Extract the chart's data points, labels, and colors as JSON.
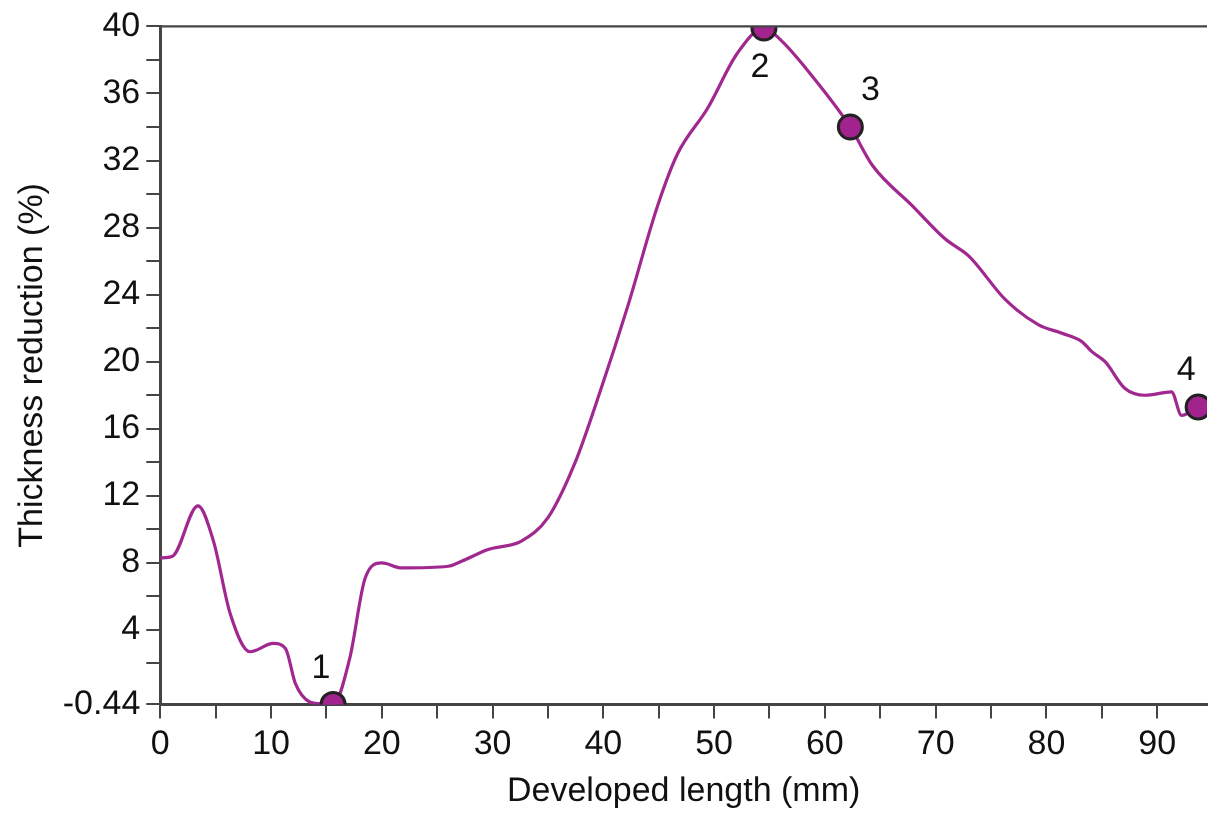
{
  "chart_data": {
    "type": "line",
    "xlabel": "Developed length (mm)",
    "ylabel": "Thickness reduction (%)",
    "xlim": [
      0,
      94.5
    ],
    "ylim": [
      -0.44,
      40
    ],
    "xticks": [
      0,
      {
        "value": 5,
        "label": null
      },
      10,
      {
        "value": 15,
        "label": null
      },
      20,
      {
        "value": 25,
        "label": null
      },
      30,
      {
        "value": 35,
        "label": null
      },
      40,
      {
        "value": 45,
        "label": null
      },
      50,
      {
        "value": 55,
        "label": null
      },
      60,
      {
        "value": 65,
        "label": null
      },
      70,
      {
        "value": 75,
        "label": null
      },
      80,
      {
        "value": 85,
        "label": null
      },
      90
    ],
    "yticks": [
      -0.44,
      {
        "value": 2,
        "label": null
      },
      4,
      {
        "value": 6,
        "label": null
      },
      8,
      {
        "value": 10,
        "label": null
      },
      12,
      {
        "value": 14,
        "label": null
      },
      16,
      {
        "value": 18,
        "label": null
      },
      20,
      {
        "value": 22,
        "label": null
      },
      24,
      {
        "value": 26,
        "label": null
      },
      28,
      {
        "value": 30,
        "label": null
      },
      32,
      {
        "value": 34,
        "label": null
      },
      36,
      {
        "value": 38,
        "label": null
      },
      40
    ],
    "grid": false,
    "legend": false,
    "series": [
      {
        "color": "#a0288f",
        "marker": "none",
        "x": [
          0,
          1.1,
          3.4,
          4.8,
          6.3,
          8.1,
          10.2,
          11.3,
          12.2,
          13.5,
          14.4,
          15.6,
          17.1,
          18.5,
          20.0,
          21.8,
          26.0,
          27.2,
          29.6,
          32.6,
          35.0,
          37.4,
          39.8,
          42.2,
          44.9,
          46.7,
          49.4,
          52.1,
          54.5,
          56.0,
          58.9,
          62.3,
          64.3,
          67.9,
          70.9,
          73.0,
          76.3,
          79.3,
          81.4,
          83.2,
          84.1,
          85.3,
          87.1,
          88.9,
          91.3,
          92.2,
          93.7
        ],
        "values": [
          8.3,
          8.4,
          11.4,
          9.3,
          5.0,
          2.7,
          3.2,
          2.9,
          0.8,
          -0.3,
          -0.4,
          -0.44,
          2.3,
          7.1,
          8.0,
          7.7,
          7.8,
          8.1,
          8.8,
          9.3,
          10.7,
          13.9,
          18.4,
          23.3,
          29.3,
          32.4,
          35.1,
          38.4,
          39.9,
          39.2,
          37.0,
          34.0,
          31.7,
          29.3,
          27.3,
          26.3,
          23.7,
          22.2,
          21.7,
          21.2,
          20.6,
          20.0,
          18.4,
          18.0,
          18.2,
          16.8,
          17.3
        ]
      },
      {
        "type": "scatter",
        "color": "#a3238e",
        "marker": "circle",
        "x": [
          15.6,
          54.5,
          62.3,
          93.7
        ],
        "values": [
          -0.44,
          39.9,
          34.0,
          17.3
        ]
      }
    ],
    "annotations": [
      {
        "text": "1",
        "x": 15.6,
        "y": -0.44
      },
      {
        "text": "2",
        "x": 54.5,
        "y": 39.9
      },
      {
        "text": "3",
        "x": 62.3,
        "y": 34.0
      },
      {
        "text": "4",
        "x": 93.7,
        "y": 17.3
      }
    ]
  }
}
